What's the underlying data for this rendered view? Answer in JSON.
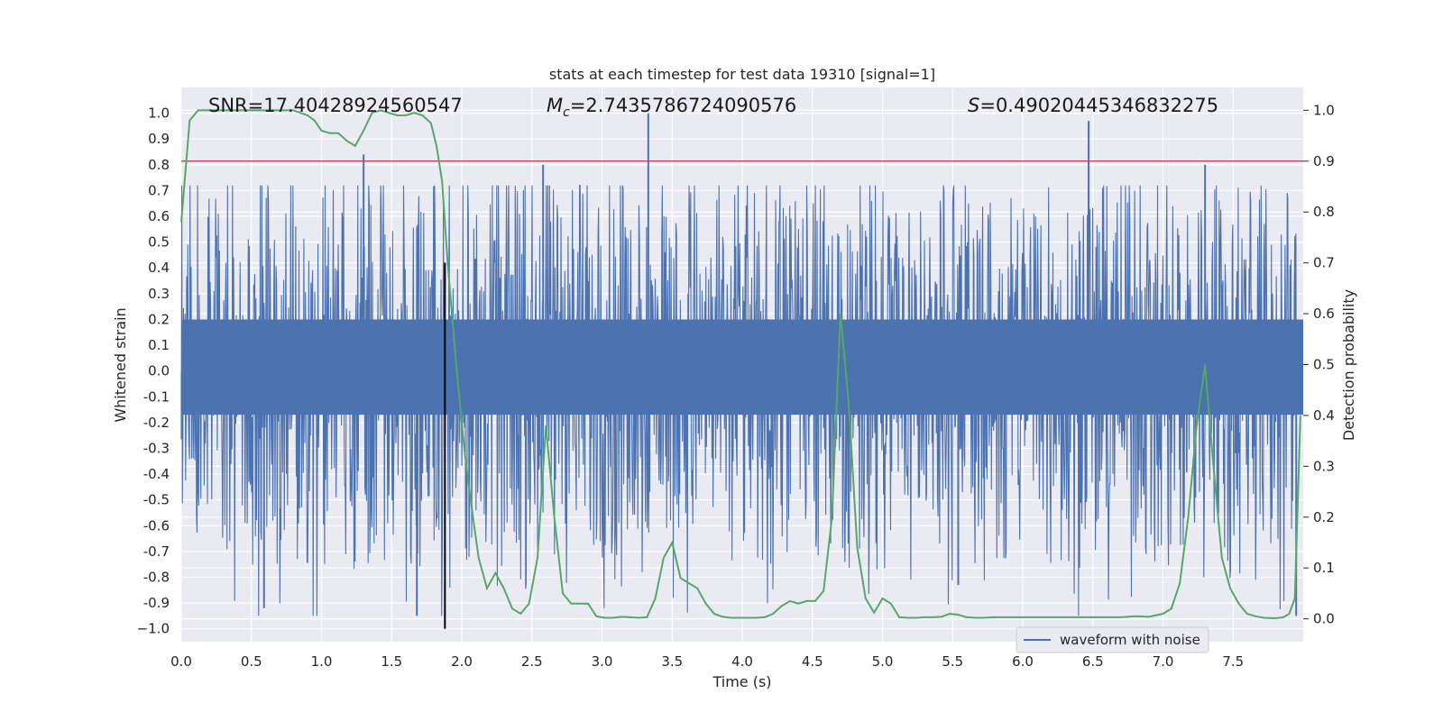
{
  "chart_data": {
    "type": "line",
    "title": "stats at each timestep for test data 19310 [signal=1]",
    "xlabel": "Time (s)",
    "ylabel_left": "Whitened strain",
    "ylabel_right": "Detection probability",
    "xlim": [
      0.0,
      8.0
    ],
    "ylim_left": [
      -1.05,
      1.1
    ],
    "ylim_right": [
      -0.045,
      1.045
    ],
    "x_ticks": [
      0.0,
      0.5,
      1.0,
      1.5,
      2.0,
      2.5,
      3.0,
      3.5,
      4.0,
      4.5,
      5.0,
      5.5,
      6.0,
      6.5,
      7.0,
      7.5
    ],
    "x_tick_labels": [
      "0.0",
      "0.5",
      "1.0",
      "1.5",
      "2.0",
      "2.5",
      "3.0",
      "3.5",
      "4.0",
      "4.5",
      "5.0",
      "5.5",
      "6.0",
      "6.5",
      "7.0",
      "7.5"
    ],
    "y_ticks_left": [
      1.0,
      0.9,
      0.8,
      0.7,
      0.6,
      0.5,
      0.4,
      0.3,
      0.2,
      0.1,
      0.0,
      -0.1,
      -0.2,
      -0.3,
      -0.4,
      -0.5,
      -0.6,
      -0.7,
      -0.8,
      -0.9,
      -1.0
    ],
    "y_tick_labels_left": [
      "1.0",
      "0.9",
      "0.8",
      "0.7",
      "0.6",
      "0.5",
      "0.4",
      "0.3",
      "0.2",
      "0.1",
      "0.0",
      "-0.1",
      "-0.2",
      "-0.3",
      "-0.4",
      "-0.5",
      "-0.6",
      "-0.7",
      "-0.8",
      "-0.9",
      "−1.0"
    ],
    "y_ticks_right": [
      1.0,
      0.9,
      0.8,
      0.7,
      0.6,
      0.5,
      0.4,
      0.3,
      0.2,
      0.1,
      0.0
    ],
    "y_tick_labels_right": [
      "1.0",
      "0.9",
      "0.8",
      "0.7",
      "0.6",
      "0.5",
      "0.4",
      "0.3",
      "0.2",
      "0.1",
      "0.0"
    ],
    "annotations": {
      "snr": "SNR=17.40428924560547",
      "mc_symbol": "M",
      "mc_subscript": "c",
      "mc_value": "=2.7435786724090576",
      "s_symbol": "S",
      "s_value": "=0.49020445346832275"
    },
    "threshold_line": {
      "y_right": 0.9,
      "color": "#c44e52"
    },
    "marker_line": {
      "x": 1.88,
      "y_left_range": [
        -1.0,
        0.42
      ],
      "color": "#000000"
    },
    "legend": {
      "label": "waveform with noise",
      "location": "lower right"
    },
    "series": [
      {
        "name": "waveform with noise",
        "axis": "left",
        "color": "#4c72b0",
        "seed": 19310,
        "n_samples": 2048,
        "description_values": {
          "typical_envelope": 0.45,
          "max": 1.0,
          "min": -0.95
        },
        "spikes": [
          {
            "x": 3.33,
            "y": 1.0
          },
          {
            "x": 6.47,
            "y": 0.97
          },
          {
            "x": 1.3,
            "y": 0.84
          },
          {
            "x": 0.59,
            "y": -0.92
          },
          {
            "x": 1.68,
            "y": -0.95
          },
          {
            "x": 5.54,
            "y": -0.83
          },
          {
            "x": 7.95,
            "y": -0.95
          },
          {
            "x": 2.58,
            "y": 0.8
          },
          {
            "x": 7.3,
            "y": 0.8
          }
        ]
      },
      {
        "name": "detection probability",
        "axis": "right",
        "color": "#55a868",
        "x": [
          0.0,
          0.06,
          0.12,
          0.2,
          0.3,
          0.4,
          0.5,
          0.6,
          0.7,
          0.8,
          0.9,
          0.95,
          1.0,
          1.06,
          1.12,
          1.18,
          1.24,
          1.3,
          1.36,
          1.42,
          1.48,
          1.54,
          1.6,
          1.66,
          1.72,
          1.78,
          1.82,
          1.86,
          1.9,
          1.96,
          2.02,
          2.08,
          2.12,
          2.18,
          2.24,
          2.3,
          2.36,
          2.42,
          2.48,
          2.54,
          2.6,
          2.66,
          2.72,
          2.78,
          2.84,
          2.9,
          2.96,
          3.02,
          3.08,
          3.14,
          3.2,
          3.26,
          3.32,
          3.38,
          3.44,
          3.5,
          3.56,
          3.62,
          3.68,
          3.74,
          3.8,
          3.86,
          3.92,
          3.98,
          4.04,
          4.1,
          4.16,
          4.22,
          4.28,
          4.34,
          4.4,
          4.46,
          4.52,
          4.58,
          4.64,
          4.7,
          4.76,
          4.82,
          4.88,
          4.94,
          5.0,
          5.06,
          5.12,
          5.18,
          5.24,
          5.3,
          5.36,
          5.42,
          5.48,
          5.54,
          5.6,
          5.66,
          5.72,
          5.8,
          5.9,
          6.0,
          6.1,
          6.2,
          6.3,
          6.4,
          6.5,
          6.6,
          6.7,
          6.8,
          6.9,
          7.0,
          7.06,
          7.12,
          7.18,
          7.24,
          7.3,
          7.36,
          7.42,
          7.48,
          7.54,
          7.6,
          7.66,
          7.72,
          7.8,
          7.86,
          7.9,
          7.94,
          7.98
        ],
        "y": [
          0.78,
          0.98,
          1.0,
          1.0,
          1.0,
          1.0,
          1.0,
          1.0,
          1.0,
          1.0,
          0.99,
          0.98,
          0.96,
          0.955,
          0.955,
          0.94,
          0.93,
          0.96,
          0.995,
          1.0,
          0.995,
          0.99,
          0.99,
          0.995,
          0.99,
          0.975,
          0.93,
          0.86,
          0.7,
          0.5,
          0.33,
          0.2,
          0.12,
          0.06,
          0.09,
          0.06,
          0.02,
          0.01,
          0.03,
          0.12,
          0.38,
          0.2,
          0.05,
          0.03,
          0.03,
          0.03,
          0.005,
          0.002,
          0.002,
          0.004,
          0.003,
          0.002,
          0.003,
          0.04,
          0.12,
          0.15,
          0.08,
          0.07,
          0.06,
          0.03,
          0.01,
          0.004,
          0.002,
          0.002,
          0.002,
          0.002,
          0.003,
          0.01,
          0.025,
          0.035,
          0.03,
          0.035,
          0.035,
          0.055,
          0.2,
          0.6,
          0.42,
          0.14,
          0.04,
          0.012,
          0.04,
          0.03,
          0.003,
          0.002,
          0.002,
          0.003,
          0.003,
          0.004,
          0.01,
          0.008,
          0.003,
          0.002,
          0.002,
          0.003,
          0.003,
          0.003,
          0.003,
          0.003,
          0.003,
          0.003,
          0.003,
          0.003,
          0.003,
          0.005,
          0.004,
          0.01,
          0.02,
          0.07,
          0.2,
          0.38,
          0.5,
          0.3,
          0.12,
          0.06,
          0.03,
          0.01,
          0.005,
          0.002,
          0.001,
          0.003,
          0.01,
          0.04,
          0.4
        ]
      }
    ]
  }
}
